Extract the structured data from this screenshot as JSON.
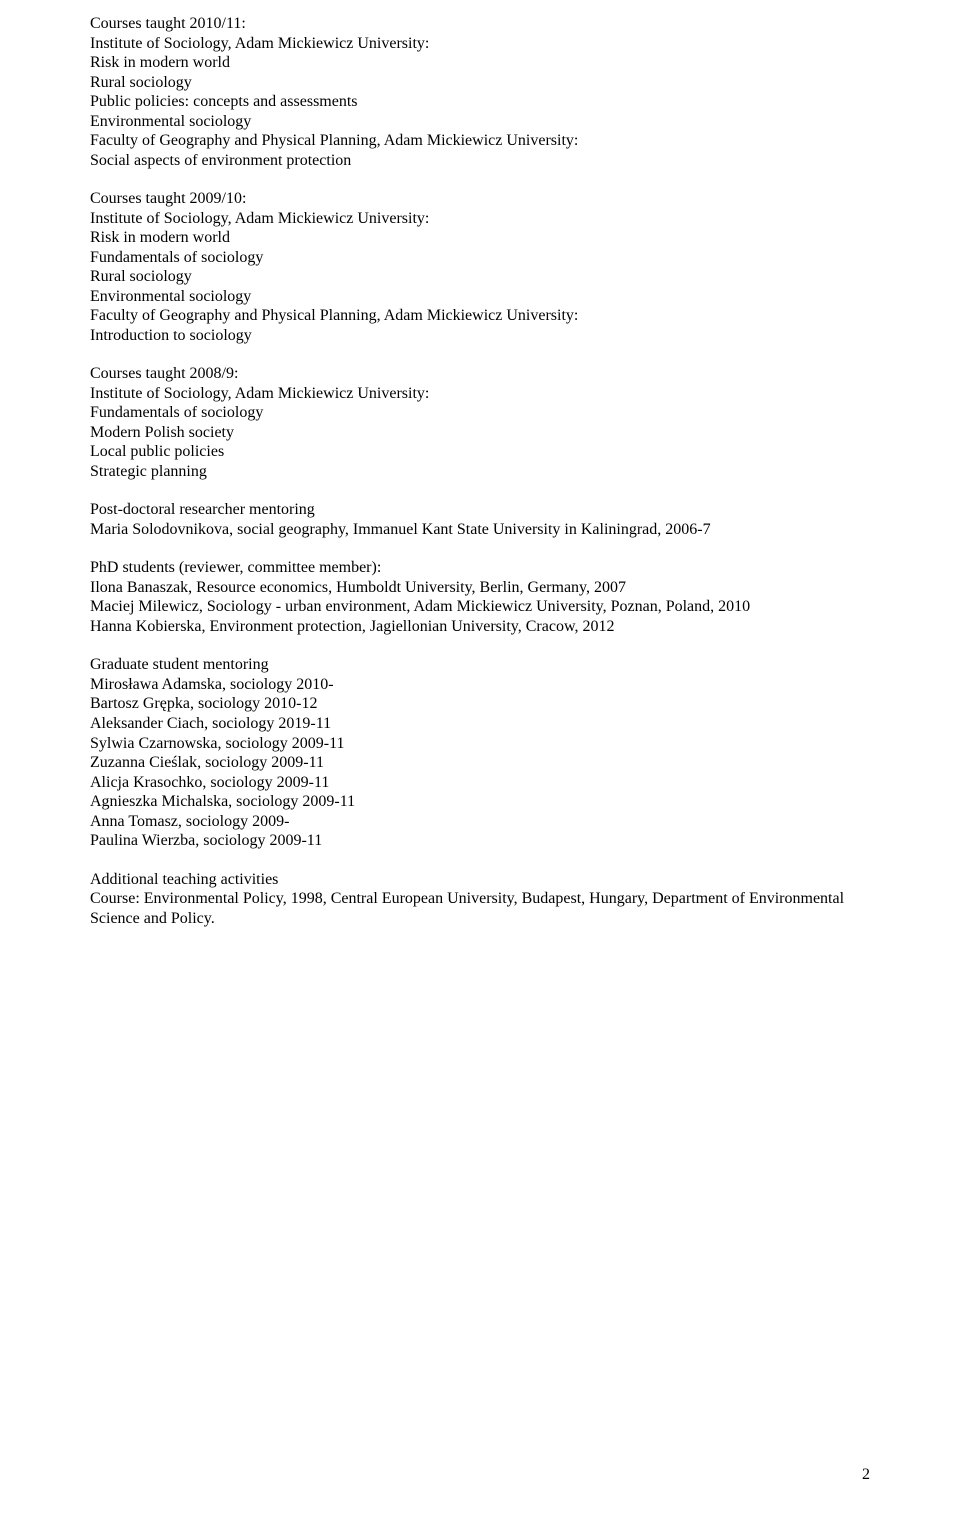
{
  "sections": [
    {
      "lines": [
        "Courses taught 2010/11:",
        "Institute of Sociology, Adam Mickiewicz University:",
        "Risk in modern world",
        "Rural sociology",
        "Public policies: concepts and assessments",
        "Environmental sociology",
        "Faculty of Geography and Physical Planning, Adam Mickiewicz University:",
        "Social aspects of environment protection"
      ]
    },
    {
      "lines": [
        "Courses taught 2009/10:",
        "Institute of Sociology, Adam Mickiewicz University:",
        "Risk in modern world",
        "Fundamentals of sociology",
        "Rural sociology",
        "Environmental sociology",
        "Faculty of Geography and Physical Planning, Adam Mickiewicz University:",
        "Introduction to sociology"
      ]
    },
    {
      "lines": [
        "Courses taught 2008/9:",
        "Institute of Sociology, Adam Mickiewicz University:",
        "Fundamentals of sociology",
        "Modern Polish society",
        "Local public policies",
        "Strategic planning"
      ]
    },
    {
      "lines": [
        "Post-doctoral researcher mentoring",
        "Maria Solodovnikova, social geography, Immanuel Kant State University in Kaliningrad, 2006-7"
      ]
    },
    {
      "lines": [
        "PhD students (reviewer, committee member):",
        "Ilona Banaszak, Resource economics, Humboldt University, Berlin, Germany, 2007",
        "Maciej Milewicz, Sociology - urban environment, Adam Mickiewicz University, Poznan, Poland, 2010",
        "Hanna Kobierska, Environment protection, Jagiellonian University, Cracow, 2012"
      ]
    },
    {
      "lines": [
        "Graduate student mentoring",
        "Mirosława Adamska, sociology 2010-",
        "Bartosz Grępka, sociology 2010-12",
        "Aleksander Ciach, sociology 2019-11",
        "Sylwia Czarnowska, sociology 2009-11",
        "Zuzanna Cieślak, sociology 2009-11",
        "Alicja Krasochko, sociology 2009-11",
        "Agnieszka Michalska, sociology 2009-11",
        "Anna Tomasz, sociology 2009-",
        "Paulina Wierzba, sociology 2009-11"
      ]
    },
    {
      "lines": [
        "Additional teaching activities",
        "Course: Environmental Policy, 1998, Central European University, Budapest, Hungary, Department of Environmental Science and Policy."
      ]
    }
  ],
  "pageNumber": "2"
}
